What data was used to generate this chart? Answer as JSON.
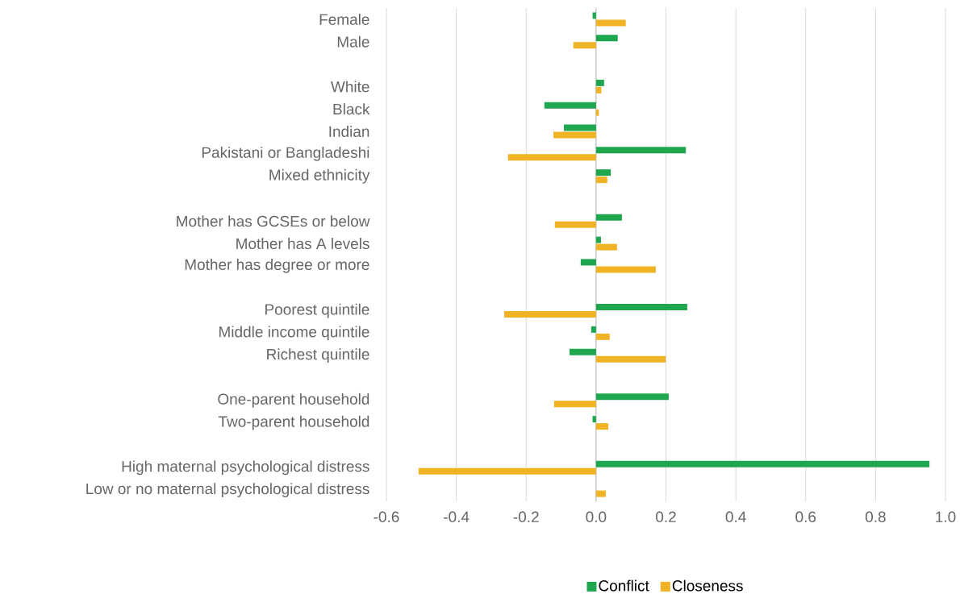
{
  "chart_data": {
    "type": "bar",
    "orientation": "horizontal",
    "categories": [
      "Female",
      "Male",
      null,
      "White",
      "Black",
      "Indian",
      "Pakistani or Bangladeshi",
      "Mixed ethnicity",
      null,
      "Mother has GCSEs or below",
      "Mother has A levels",
      "Mother has degree or more",
      null,
      "Poorest quintile",
      "Middle income quintile",
      "Richest quintile",
      null,
      "One-parent household",
      "Two-parent household",
      null,
      "High maternal psychological distress",
      "Low or no maternal psychological distress"
    ],
    "series": [
      {
        "name": "Conflict",
        "color": "#1fa750",
        "values": [
          -0.01,
          0.062,
          null,
          0.023,
          -0.148,
          -0.092,
          0.257,
          0.042,
          null,
          0.074,
          0.014,
          -0.044,
          null,
          0.261,
          -0.014,
          -0.076,
          null,
          0.208,
          -0.01,
          null,
          0.954,
          null
        ]
      },
      {
        "name": "Closeness",
        "color": "#f0b323",
        "values": [
          0.085,
          -0.065,
          null,
          0.015,
          0.008,
          -0.122,
          -0.252,
          0.032,
          null,
          -0.118,
          0.06,
          0.171,
          null,
          -0.263,
          0.039,
          0.199,
          null,
          -0.12,
          0.035,
          null,
          -0.508,
          0.028
        ]
      }
    ],
    "xlim": [
      -0.6,
      1.0
    ],
    "xticks": [
      -0.6,
      -0.4,
      -0.2,
      {
        "value": 0,
        "label": "0.0"
      },
      0.2,
      0.4,
      0.6,
      0.8,
      {
        "value": 1.0,
        "label": "1.0"
      }
    ],
    "grid": "x",
    "legend": "bottom"
  }
}
